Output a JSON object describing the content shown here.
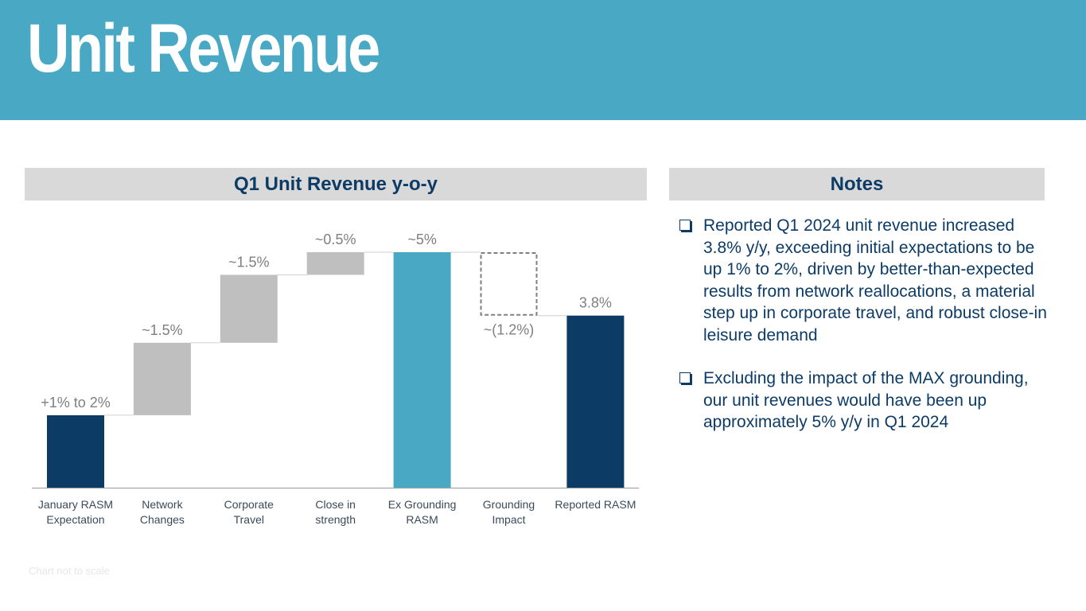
{
  "header": {
    "title": "Unit Revenue"
  },
  "chart_panel": {
    "title": "Q1 Unit Revenue y-o-y"
  },
  "notes_panel": {
    "title": "Notes",
    "items": [
      "Reported Q1 2024 unit revenue increased 3.8% y/y, exceeding initial expectations to be up 1% to 2%, driven by better-than-expected results from network reallocations, a material step up in corporate travel, and robust close-in leisure demand",
      "Excluding the impact of the MAX grounding, our unit revenues would have been up approximately 5% y/y in Q1 2024"
    ]
  },
  "footnote": "Chart not to scale",
  "colors": {
    "header": "#49a9c5",
    "navy": "#0c3b66",
    "teal": "#49a9c5",
    "gray": "#bfbfbf",
    "dashed": "#7f7f7f"
  },
  "chart_data": {
    "type": "waterfall",
    "title": "Q1 Unit Revenue y-o-y",
    "ylim": [
      0,
      5.2
    ],
    "bars": [
      {
        "category": "January RASM\nExpectation",
        "label": "+1% to 2%",
        "start": 0,
        "end": 1.6,
        "kind": "total",
        "color": "#0c3b66"
      },
      {
        "category": "Network\nChanges",
        "label": "~1.5%",
        "start": 1.6,
        "end": 3.2,
        "kind": "delta",
        "color": "#bfbfbf"
      },
      {
        "category": "Corporate\nTravel",
        "label": "~1.5%",
        "start": 3.2,
        "end": 4.7,
        "kind": "delta",
        "color": "#bfbfbf"
      },
      {
        "category": "Close in\nstrength",
        "label": "~0.5%",
        "start": 4.7,
        "end": 5.2,
        "kind": "delta",
        "color": "#bfbfbf"
      },
      {
        "category": "Ex Grounding\nRASM",
        "label": "~5%",
        "start": 0,
        "end": 5.2,
        "kind": "total",
        "color": "#49a9c5"
      },
      {
        "category": "Grounding\nImpact",
        "label": "~(1.2%)",
        "start": 3.8,
        "end": 5.2,
        "kind": "negative",
        "color": "#7f7f7f"
      },
      {
        "category": "Reported RASM",
        "label": "3.8%",
        "start": 0,
        "end": 3.8,
        "kind": "total",
        "color": "#0c3b66"
      }
    ]
  }
}
